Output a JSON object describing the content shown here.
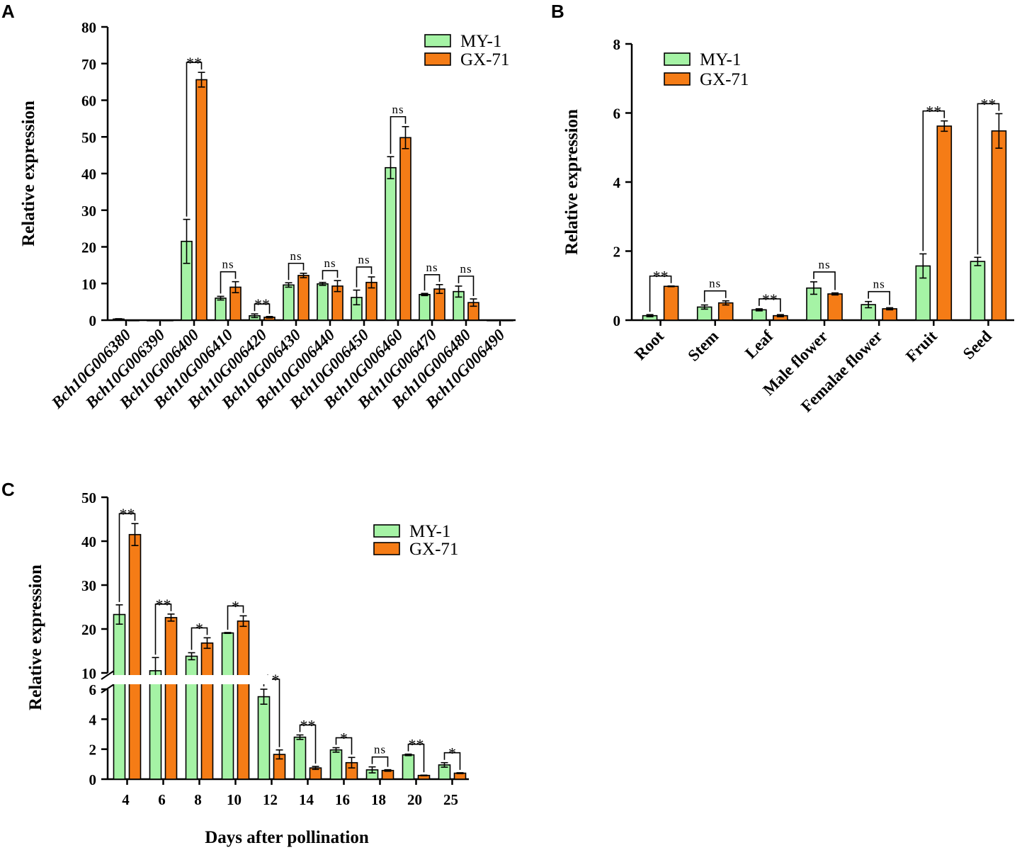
{
  "colors": {
    "my1": "#a5f3a5",
    "gx71": "#f57c16",
    "axis": "#000000"
  },
  "legend": [
    "MY-1",
    "GX-71"
  ],
  "chart_data": [
    {
      "panel": "A",
      "type": "bar",
      "ylabel": "Relative expression",
      "xlabel": "",
      "ylim": [
        0,
        80
      ],
      "yticks": [
        0,
        10,
        20,
        30,
        40,
        50,
        60,
        70,
        80
      ],
      "categories": [
        "Bch10G006380",
        "Bch10G006390",
        "Bch10G006400",
        "Bch10G006410",
        "Bch10G006420",
        "Bch10G006430",
        "Bch10G006440",
        "Bch10G006450",
        "Bch10G006460",
        "Bch10G006470",
        "Bch10G006480",
        "Bch10G006490"
      ],
      "series": [
        {
          "name": "MY-1",
          "values": [
            0.3,
            0,
            21.5,
            6.0,
            1.2,
            9.6,
            9.9,
            6.2,
            41.6,
            7.0,
            7.8,
            0
          ],
          "errors": [
            0.1,
            0,
            6.0,
            0.5,
            0.5,
            0.6,
            0.4,
            2.0,
            3.0,
            0.3,
            1.5,
            0
          ]
        },
        {
          "name": "GX-71",
          "values": [
            0,
            0,
            65.6,
            9.0,
            0.8,
            12.2,
            9.3,
            10.3,
            49.8,
            8.5,
            4.8,
            0
          ],
          "errors": [
            0,
            0,
            2.0,
            1.5,
            0.2,
            0.6,
            1.5,
            1.5,
            3.0,
            1.2,
            1.0,
            0
          ]
        }
      ],
      "significance": [
        "",
        "",
        "**",
        "ns",
        "**",
        "ns",
        "ns",
        "ns",
        "ns",
        "ns",
        "ns",
        ""
      ]
    },
    {
      "panel": "B",
      "type": "bar",
      "ylabel": "Relative expression",
      "xlabel": "",
      "ylim": [
        0,
        8
      ],
      "yticks": [
        0,
        2,
        4,
        6,
        8
      ],
      "categories": [
        "Root",
        "Stem",
        "Leaf",
        "Male flower",
        "Femalae flower",
        "Fruit",
        "Seed"
      ],
      "series": [
        {
          "name": "MY-1",
          "values": [
            0.13,
            0.38,
            0.3,
            0.93,
            0.45,
            1.57,
            1.7
          ],
          "errors": [
            0.03,
            0.06,
            0.03,
            0.18,
            0.09,
            0.35,
            0.12
          ]
        },
        {
          "name": "GX-71",
          "values": [
            0.98,
            0.5,
            0.13,
            0.76,
            0.33,
            5.62,
            5.48
          ],
          "errors": [
            0.01,
            0.06,
            0.03,
            0.03,
            0.03,
            0.15,
            0.5
          ]
        }
      ],
      "significance": [
        "**",
        "ns",
        "**",
        "ns",
        "ns",
        "**",
        "**"
      ]
    },
    {
      "panel": "C",
      "type": "bar",
      "ylabel": "Relative expression",
      "xlabel": "Days after pollination",
      "ylim": [
        0,
        50
      ],
      "axis_break": [
        6,
        10
      ],
      "yticks_lower": [
        0,
        2,
        4,
        6
      ],
      "yticks_upper": [
        10,
        20,
        30,
        40,
        50
      ],
      "categories": [
        "4",
        "6",
        "8",
        "10",
        "12",
        "14",
        "16",
        "18",
        "20",
        "25"
      ],
      "series": [
        {
          "name": "MY-1",
          "values": [
            23.3,
            10.5,
            13.8,
            19.1,
            5.5,
            2.8,
            1.95,
            0.62,
            1.62,
            0.95
          ],
          "errors": [
            2.2,
            3.0,
            0.8,
            0.1,
            0.5,
            0.15,
            0.15,
            0.2,
            0.05,
            0.15
          ]
        },
        {
          "name": "GX-71",
          "values": [
            41.5,
            22.6,
            16.8,
            21.8,
            1.65,
            0.75,
            1.1,
            0.58,
            0.25,
            0.4
          ],
          "errors": [
            2.5,
            0.8,
            1.2,
            1.2,
            0.3,
            0.1,
            0.35,
            0.05,
            0.02,
            0.03
          ]
        }
      ],
      "significance": [
        "**",
        "**",
        "*",
        "*",
        "**",
        "**",
        "*",
        "ns",
        "**",
        "*"
      ]
    }
  ]
}
